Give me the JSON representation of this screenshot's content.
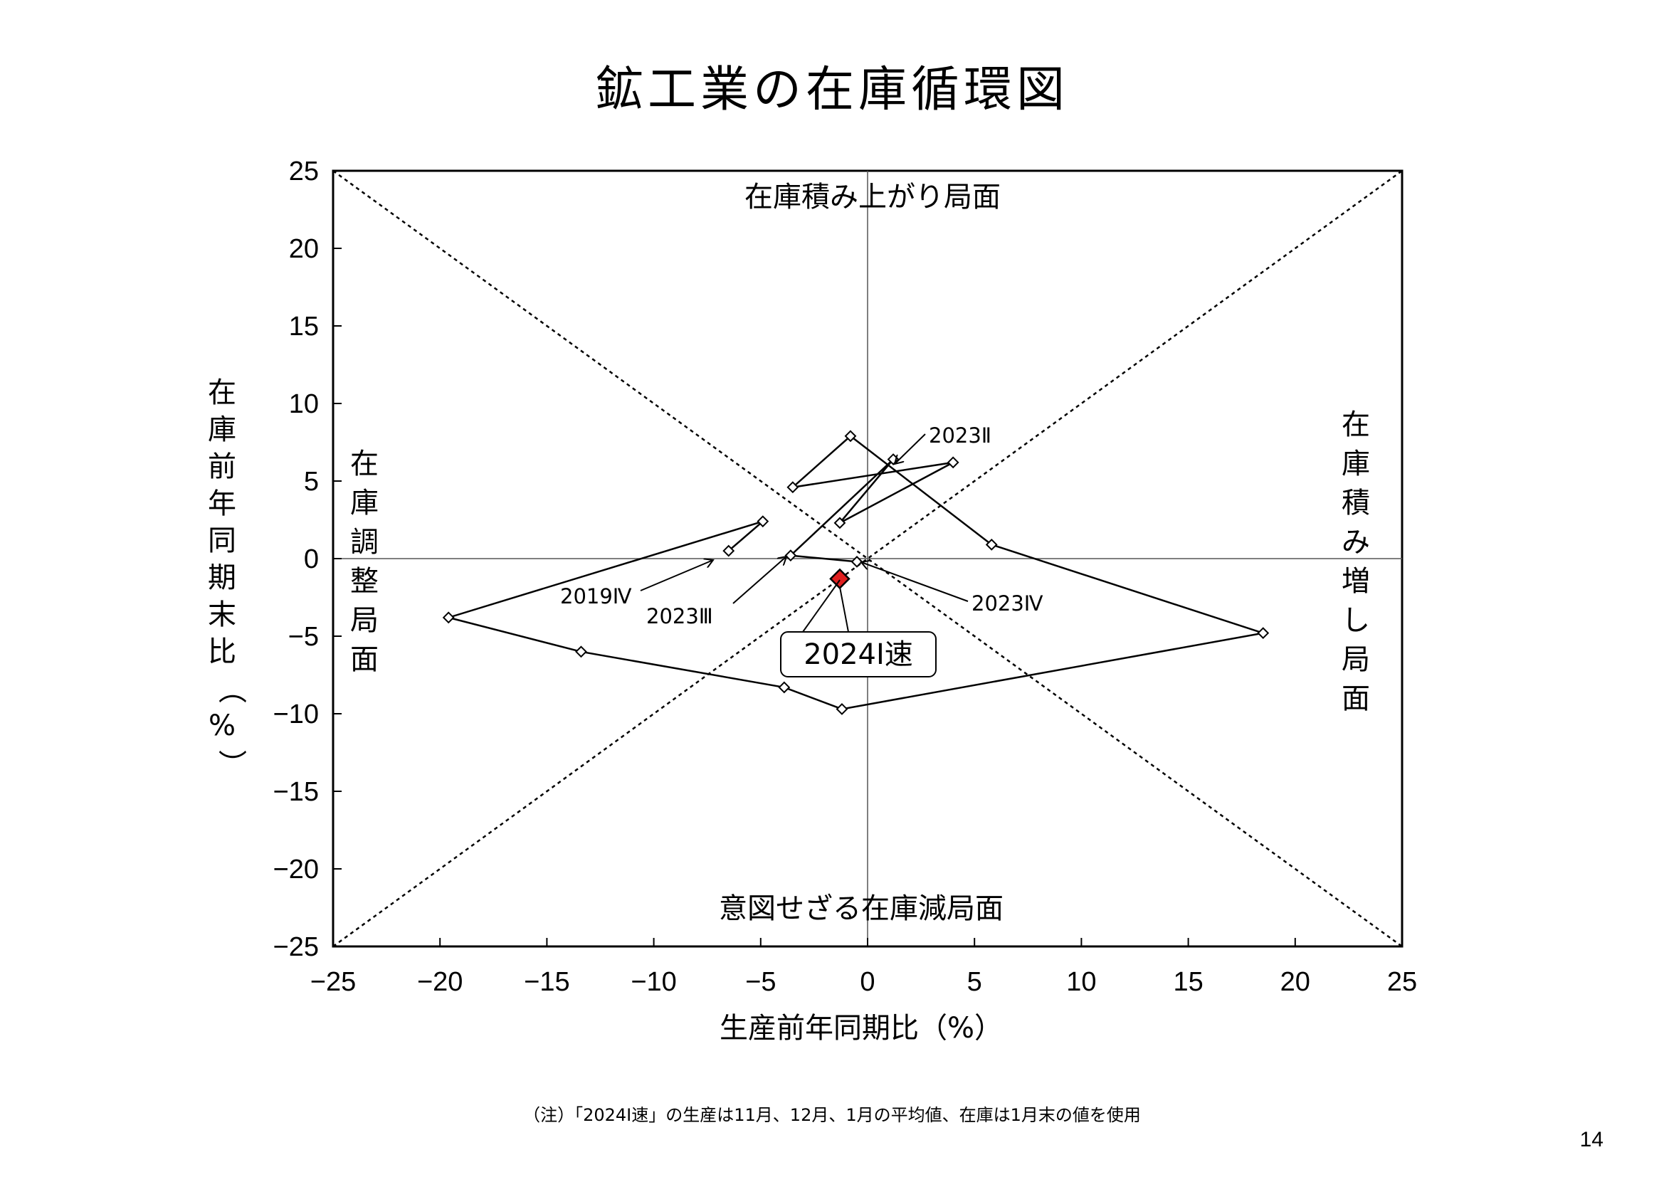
{
  "page": {
    "title": "鉱工業の在庫循環図",
    "footnote": "（注）「2024Ⅰ速」の生産は11月、12月、1月の平均値、在庫は1月末の値を使用",
    "page_number": "14"
  },
  "chart_data": {
    "type": "scatter",
    "title": "鉱工業の在庫循環図",
    "xlabel": "生産前年同期比（%）",
    "ylabel": "在庫前年同期末比（%）",
    "xlim": [
      -25,
      25
    ],
    "ylim": [
      -25,
      25
    ],
    "xticks": [
      -25,
      -20,
      -15,
      -10,
      -5,
      0,
      5,
      10,
      15,
      20,
      25
    ],
    "yticks": [
      -25,
      -20,
      -15,
      -10,
      -5,
      0,
      5,
      10,
      15,
      20,
      25
    ],
    "xtick_labels": [
      "−25",
      "−20",
      "−15",
      "−10",
      "−5",
      "0",
      "5",
      "10",
      "15",
      "20",
      "25"
    ],
    "ytick_labels": [
      "−25",
      "−20",
      "−15",
      "−10",
      "−5",
      "0",
      "5",
      "10",
      "15",
      "20",
      "25"
    ],
    "grid": false,
    "reference_lines": "dotted 45° diagonals",
    "quadrant_labels": {
      "top": "在庫積み上がり局面",
      "bottom": "意図せざる在庫減局面",
      "left": "在庫調整局面",
      "right": "在庫積み増し局面"
    },
    "series": [
      {
        "points": [
          [
            -6.5,
            0.5
          ],
          [
            -4.9,
            2.4
          ],
          [
            -19.6,
            -3.8
          ],
          [
            -13.4,
            -6.0
          ],
          [
            -3.9,
            -8.3
          ],
          [
            -1.2,
            -9.7
          ],
          [
            18.5,
            -4.8
          ],
          [
            5.8,
            0.9
          ],
          [
            -0.8,
            7.9
          ],
          [
            -3.5,
            4.6
          ],
          [
            4.0,
            6.2
          ],
          [
            -1.3,
            2.3
          ],
          [
            1.2,
            6.4
          ],
          [
            -3.6,
            0.2
          ],
          [
            -0.5,
            -0.2
          ]
        ],
        "color": "#000000"
      },
      {
        "points": [
          [
            -1.3,
            -1.3
          ]
        ],
        "color": "#e02020"
      }
    ],
    "annotations": [
      {
        "text": "2019Ⅳ",
        "point": [
          -6.5,
          0.5
        ]
      },
      {
        "text": "2023Ⅱ",
        "point": [
          1.2,
          6.4
        ]
      },
      {
        "text": "2023Ⅲ",
        "point": [
          -3.6,
          0.2
        ]
      },
      {
        "text": "2023Ⅳ",
        "point": [
          -0.5,
          -0.2
        ]
      },
      {
        "text": "2024Ⅰ速",
        "point": [
          -1.3,
          -1.3
        ]
      }
    ]
  }
}
